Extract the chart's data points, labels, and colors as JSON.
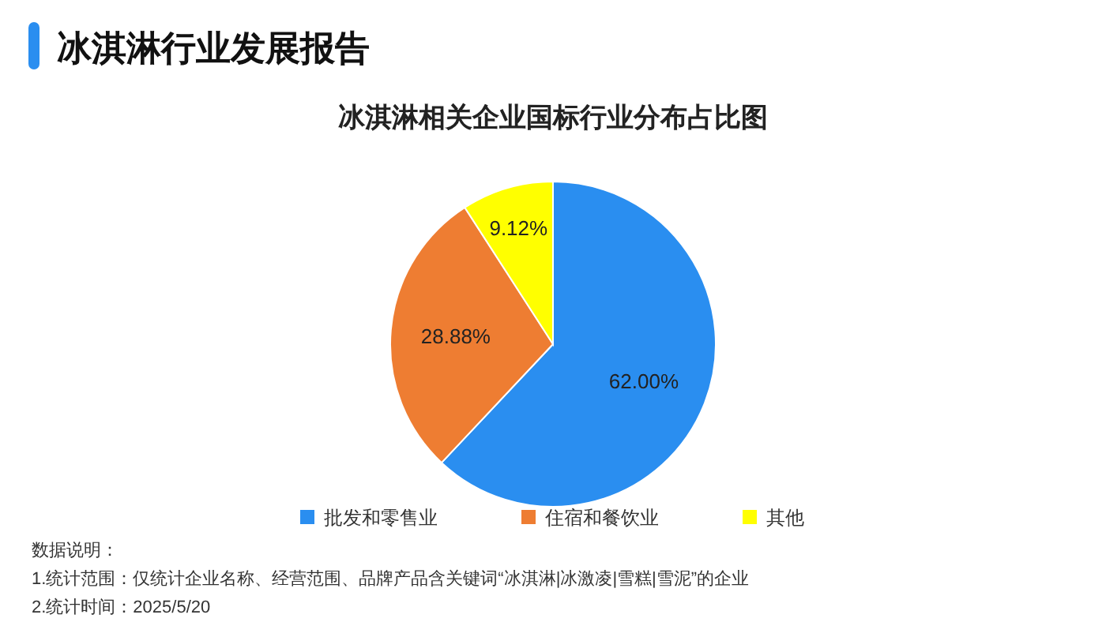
{
  "chart_data": {
    "type": "pie",
    "title": "冰淇淋行业发展报告",
    "subtitle": "冰淇淋相关企业国标行业分布占比图",
    "categories": [
      "批发和零售业",
      "住宿和餐饮业",
      "其他"
    ],
    "values": [
      62.0,
      28.88,
      9.12
    ],
    "colors": [
      "#2a8ef0",
      "#ee7d32",
      "#ffff00"
    ],
    "value_labels": [
      "62.00%",
      "28.88%",
      "9.12%"
    ],
    "legend": "bottom",
    "annotations": [
      "数据说明：",
      "1.统计范围：仅统计企业名称、经营范围、品牌产品含关键词“冰淇淋|冰激凌|雪糕|雪泥”的企业",
      "2.统计时间：2025/5/20"
    ]
  }
}
